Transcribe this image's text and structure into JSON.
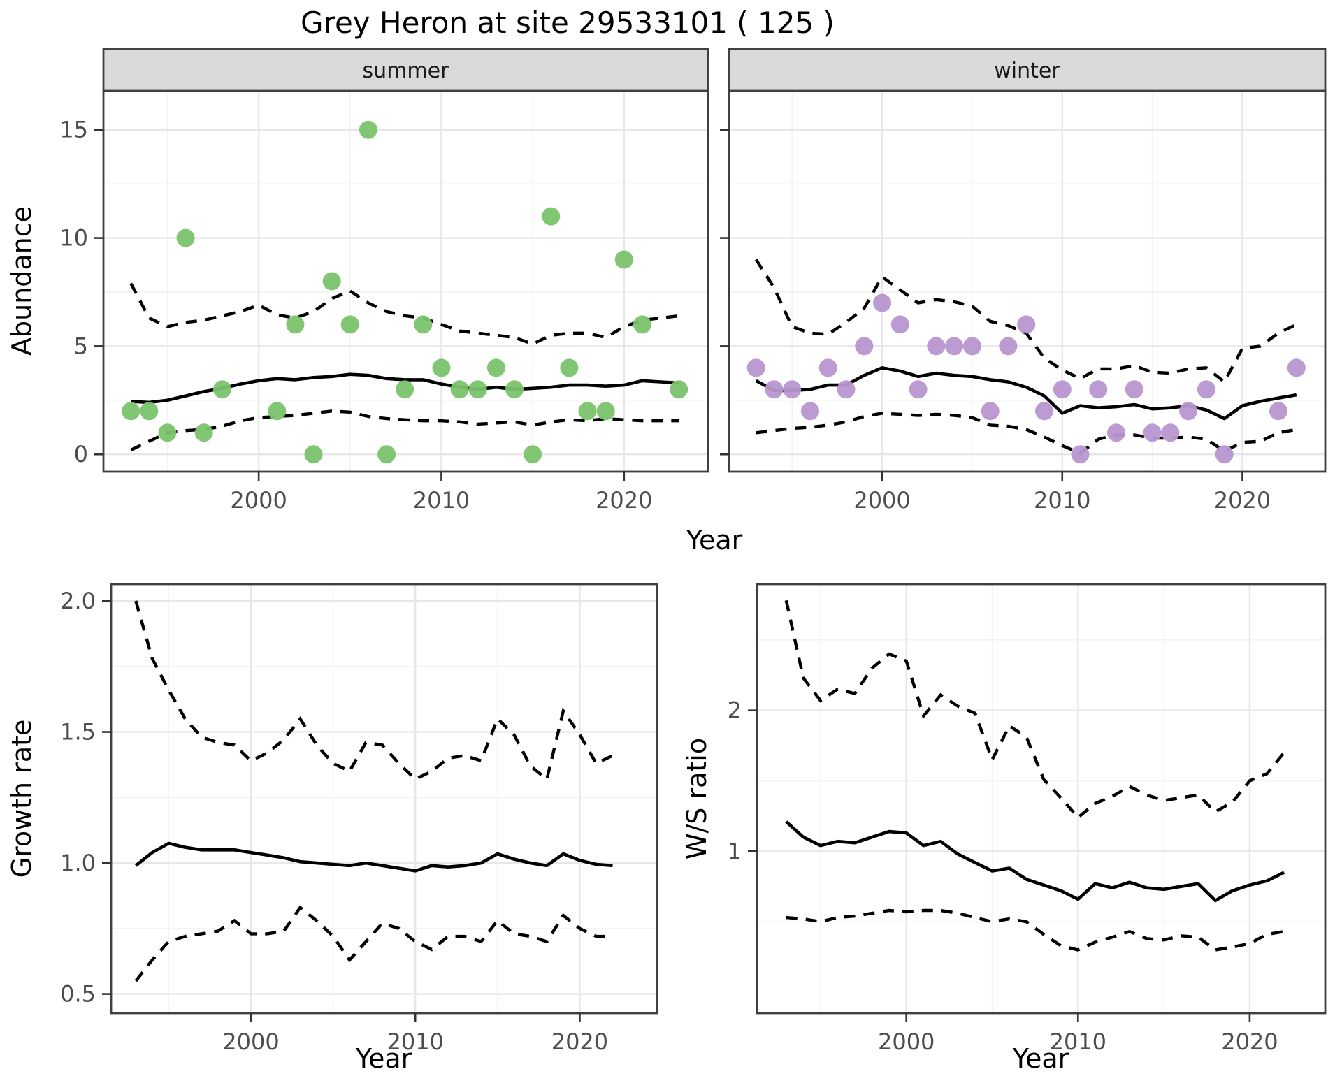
{
  "title": "Grey Heron at site 29533101 ( 125 )",
  "colors": {
    "summer_point": "#7ac36a",
    "winter_point": "#b796cf",
    "trend_line": "#000000",
    "band_line": "#000000",
    "strip_bg": "#d9d9d9",
    "strip_text": "#1a1a1a",
    "panel_border": "#404040",
    "grid_major": "#e7e7e7",
    "grid_minor": "#f3f3f3",
    "tick_mark": "#333333",
    "tick_text": "#4d4d4d",
    "axis_title": "#000000"
  },
  "chart_data": [
    {
      "id": "abundance-summer",
      "type": "scatter",
      "facet_label": "summer",
      "xlabel": "Year",
      "ylabel": "Abundance",
      "xlim": [
        1991.5,
        2024.6
      ],
      "ylim": [
        -0.8,
        16.8
      ],
      "x_ticks": [
        2000,
        2010,
        2020
      ],
      "x_tick_labels": [
        "2000",
        "2010",
        "2020"
      ],
      "x_minor": [
        1995,
        2005,
        2015
      ],
      "y_ticks": [
        0,
        5,
        10,
        15
      ],
      "y_tick_labels": [
        "0",
        "5",
        "10",
        "15"
      ],
      "y_minor": [
        2.5,
        7.5,
        12.5
      ],
      "points": {
        "years": [
          1993,
          1994,
          1995,
          1996,
          1997,
          1998,
          2001,
          2002,
          2003,
          2004,
          2005,
          2006,
          2007,
          2008,
          2009,
          2010,
          2011,
          2012,
          2013,
          2014,
          2015,
          2016,
          2017,
          2018,
          2019,
          2020,
          2021,
          2023
        ],
        "values": [
          2,
          2,
          1,
          10,
          1,
          3,
          2,
          6,
          0,
          8,
          6,
          15,
          0,
          3,
          6,
          4,
          3,
          3,
          4,
          3,
          0,
          11,
          4,
          2,
          2,
          9,
          6,
          3
        ]
      },
      "trend": {
        "start_year": 1993,
        "values": [
          2.45,
          2.4,
          2.5,
          2.7,
          2.9,
          3.05,
          3.25,
          3.4,
          3.5,
          3.45,
          3.55,
          3.6,
          3.7,
          3.65,
          3.5,
          3.45,
          3.45,
          3.25,
          3.1,
          3.0,
          3.1,
          3.0,
          3.05,
          3.1,
          3.2,
          3.2,
          3.15,
          3.2,
          3.4,
          3.35,
          3.3
        ]
      },
      "upper": {
        "start_year": 1993,
        "values": [
          7.9,
          6.3,
          5.9,
          6.1,
          6.2,
          6.4,
          6.6,
          6.9,
          6.45,
          6.3,
          6.6,
          7.2,
          7.55,
          7.0,
          6.6,
          6.4,
          6.3,
          6.0,
          5.7,
          5.6,
          5.5,
          5.4,
          5.1,
          5.5,
          5.6,
          5.6,
          5.4,
          5.9,
          6.2,
          6.3,
          6.4
        ]
      },
      "lower": {
        "start_year": 1993,
        "values": [
          0.2,
          0.6,
          1.0,
          1.1,
          1.15,
          1.3,
          1.55,
          1.7,
          1.75,
          1.8,
          1.9,
          2.0,
          1.95,
          1.75,
          1.65,
          1.6,
          1.55,
          1.55,
          1.5,
          1.4,
          1.45,
          1.5,
          1.35,
          1.5,
          1.6,
          1.55,
          1.65,
          1.6,
          1.55,
          1.55,
          1.55
        ]
      }
    },
    {
      "id": "abundance-winter",
      "type": "scatter",
      "facet_label": "winter",
      "xlabel": "Year",
      "ylabel": "Abundance",
      "xlim": [
        1991.5,
        2024.6
      ],
      "ylim": [
        -0.8,
        16.8
      ],
      "x_ticks": [
        2000,
        2010,
        2020
      ],
      "x_tick_labels": [
        "2000",
        "2010",
        "2020"
      ],
      "x_minor": [
        1995,
        2005,
        2015
      ],
      "y_ticks": [
        0,
        5,
        10,
        15
      ],
      "y_tick_labels": [
        "0",
        "5",
        "10",
        "15"
      ],
      "y_minor": [
        2.5,
        7.5,
        12.5
      ],
      "points": {
        "years": [
          1993,
          1994,
          1995,
          1996,
          1997,
          1998,
          1999,
          2000,
          2001,
          2002,
          2003,
          2004,
          2005,
          2006,
          2007,
          2008,
          2009,
          2010,
          2011,
          2012,
          2013,
          2014,
          2015,
          2016,
          2017,
          2018,
          2019,
          2022,
          2023
        ],
        "values": [
          4,
          3,
          3,
          2,
          4,
          3,
          5,
          7,
          6,
          3,
          5,
          5,
          5,
          2,
          5,
          6,
          2,
          3,
          0,
          3,
          1,
          3,
          1,
          1,
          2,
          3,
          0,
          2,
          4
        ]
      },
      "trend": {
        "start_year": 1993,
        "values": [
          3.4,
          2.95,
          2.95,
          3.0,
          3.2,
          3.2,
          3.65,
          4.0,
          3.85,
          3.6,
          3.75,
          3.65,
          3.6,
          3.45,
          3.35,
          3.1,
          2.7,
          1.9,
          2.25,
          2.15,
          2.2,
          2.3,
          2.1,
          2.15,
          2.25,
          2.05,
          1.65,
          2.25,
          2.45,
          2.6,
          2.75
        ]
      },
      "upper": {
        "start_year": 1993,
        "values": [
          9.0,
          7.7,
          5.9,
          5.6,
          5.55,
          6.1,
          6.75,
          8.2,
          7.6,
          7.0,
          7.15,
          7.05,
          6.85,
          6.15,
          5.95,
          5.6,
          4.45,
          3.9,
          3.5,
          3.95,
          3.95,
          4.1,
          3.8,
          3.75,
          3.95,
          4.0,
          3.35,
          4.9,
          5.0,
          5.6,
          6.0
        ]
      },
      "lower": {
        "start_year": 1993,
        "values": [
          1.0,
          1.1,
          1.2,
          1.25,
          1.35,
          1.5,
          1.75,
          1.9,
          1.85,
          1.8,
          1.85,
          1.8,
          1.7,
          1.35,
          1.3,
          1.15,
          0.8,
          0.4,
          0.05,
          0.7,
          0.9,
          0.9,
          0.75,
          0.75,
          0.8,
          0.7,
          0.15,
          0.55,
          0.6,
          1.0,
          1.15
        ]
      }
    },
    {
      "id": "growth-rate",
      "type": "line",
      "facet_label": null,
      "xlabel": "Year",
      "ylabel": "Growth rate",
      "xlim": [
        1991.5,
        2024.7
      ],
      "ylim": [
        0.427,
        2.064
      ],
      "x_ticks": [
        2000,
        2010,
        2020
      ],
      "x_tick_labels": [
        "2000",
        "2010",
        "2020"
      ],
      "x_minor": [
        1995,
        2005,
        2015
      ],
      "y_ticks": [
        0.5,
        1.0,
        1.5,
        2.0
      ],
      "y_tick_labels": [
        "0.5",
        "1.0",
        "1.5",
        "2.0"
      ],
      "y_minor": [
        0.75,
        1.25,
        1.75
      ],
      "points": null,
      "trend": {
        "start_year": 1993,
        "values": [
          0.99,
          1.04,
          1.075,
          1.06,
          1.05,
          1.05,
          1.05,
          1.04,
          1.03,
          1.02,
          1.005,
          1.0,
          0.995,
          0.99,
          1.0,
          0.99,
          0.98,
          0.97,
          0.99,
          0.985,
          0.99,
          1.0,
          1.035,
          1.015,
          1.0,
          0.99,
          1.035,
          1.01,
          0.995,
          0.99
        ]
      },
      "upper": {
        "start_year": 1993,
        "values": [
          2.0,
          1.78,
          1.66,
          1.55,
          1.48,
          1.46,
          1.45,
          1.39,
          1.42,
          1.47,
          1.55,
          1.45,
          1.38,
          1.35,
          1.46,
          1.45,
          1.38,
          1.32,
          1.35,
          1.4,
          1.41,
          1.39,
          1.55,
          1.49,
          1.37,
          1.32,
          1.58,
          1.49,
          1.38,
          1.41
        ]
      },
      "lower": {
        "start_year": 1993,
        "values": [
          0.55,
          0.63,
          0.7,
          0.72,
          0.73,
          0.74,
          0.78,
          0.73,
          0.73,
          0.74,
          0.83,
          0.78,
          0.72,
          0.63,
          0.7,
          0.77,
          0.75,
          0.7,
          0.67,
          0.72,
          0.72,
          0.7,
          0.78,
          0.73,
          0.72,
          0.7,
          0.8,
          0.75,
          0.72,
          0.72
        ]
      }
    },
    {
      "id": "ws-ratio",
      "type": "line",
      "facet_label": null,
      "xlabel": "Year",
      "ylabel": "W/S ratio",
      "xlim": [
        1991.3,
        2024.4
      ],
      "ylim": [
        -0.149,
        2.896
      ],
      "x_ticks": [
        2000,
        2010,
        2020
      ],
      "x_tick_labels": [
        "2000",
        "2010",
        "2020"
      ],
      "x_minor": [
        1995,
        2005,
        2015
      ],
      "y_ticks": [
        1,
        2
      ],
      "y_tick_labels": [
        "1",
        "2"
      ],
      "y_minor": [
        0.5,
        1.5,
        2.5
      ],
      "points": null,
      "trend": {
        "start_year": 1993,
        "values": [
          1.21,
          1.1,
          1.04,
          1.07,
          1.06,
          1.1,
          1.14,
          1.13,
          1.04,
          1.07,
          0.98,
          0.92,
          0.86,
          0.88,
          0.8,
          0.76,
          0.72,
          0.66,
          0.77,
          0.74,
          0.78,
          0.74,
          0.73,
          0.75,
          0.77,
          0.65,
          0.72,
          0.76,
          0.79,
          0.85
        ]
      },
      "upper": {
        "start_year": 1993,
        "values": [
          2.78,
          2.23,
          2.07,
          2.15,
          2.12,
          2.3,
          2.4,
          2.35,
          1.96,
          2.11,
          2.03,
          1.98,
          1.65,
          1.89,
          1.81,
          1.51,
          1.38,
          1.24,
          1.34,
          1.39,
          1.46,
          1.4,
          1.36,
          1.38,
          1.4,
          1.28,
          1.35,
          1.5,
          1.55,
          1.7
        ]
      },
      "lower": {
        "start_year": 1993,
        "values": [
          0.53,
          0.52,
          0.5,
          0.53,
          0.54,
          0.56,
          0.58,
          0.57,
          0.58,
          0.58,
          0.56,
          0.53,
          0.5,
          0.52,
          0.5,
          0.41,
          0.33,
          0.3,
          0.355,
          0.39,
          0.43,
          0.38,
          0.37,
          0.4,
          0.39,
          0.3,
          0.32,
          0.345,
          0.41,
          0.43
        ]
      }
    }
  ]
}
